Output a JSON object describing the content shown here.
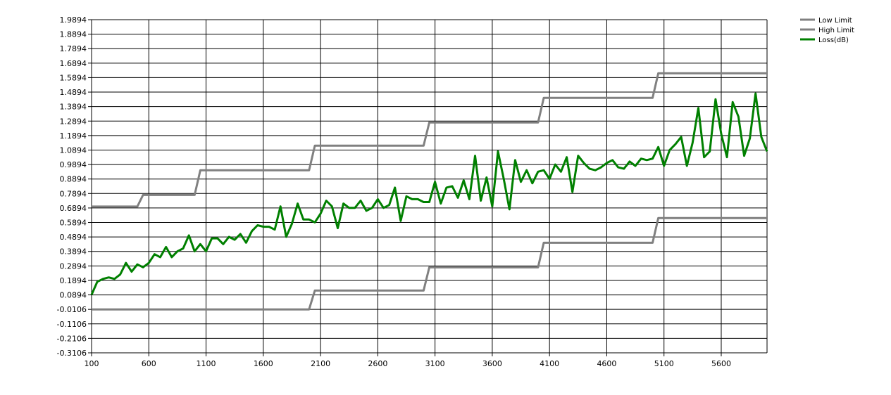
{
  "chart_data": {
    "type": "line",
    "title": "",
    "xlabel": "",
    "ylabel": "",
    "xlim": [
      100,
      6000
    ],
    "ylim": [
      -0.3106,
      1.9894
    ],
    "x_ticks": [
      "100",
      "600",
      "1100",
      "1600",
      "2100",
      "2600",
      "3100",
      "3600",
      "4100",
      "4600",
      "5100",
      "5600"
    ],
    "y_ticks": [
      "1.9894",
      "1.8894",
      "1.7894",
      "1.6894",
      "1.5894",
      "1.4894",
      "1.3894",
      "1.2894",
      "1.1894",
      "1.0894",
      "0.9894",
      "0.8894",
      "0.7894",
      "0.6894",
      "0.5894",
      "0.4894",
      "0.3894",
      "0.2894",
      "0.1894",
      "0.0894",
      "-0.0106",
      "-0.1106",
      "-0.2106",
      "-0.3106"
    ],
    "grid": true,
    "legend_position": "top-right",
    "series": [
      {
        "name": "Low Limit",
        "color": "#808080",
        "x": [
          100,
          2000,
          2050,
          3000,
          3050,
          4000,
          4050,
          5000,
          5050,
          6000
        ],
        "y": [
          -0.0106,
          -0.0106,
          0.1194,
          0.1194,
          0.2794,
          0.2794,
          0.4494,
          0.4494,
          0.6194,
          0.6194
        ]
      },
      {
        "name": "High Limit",
        "color": "#808080",
        "x": [
          100,
          500,
          550,
          1000,
          1050,
          2000,
          2050,
          3000,
          3050,
          4000,
          4050,
          5000,
          5050,
          6000
        ],
        "y": [
          0.6994,
          0.6994,
          0.7794,
          0.7794,
          0.9494,
          0.9494,
          1.1194,
          1.1194,
          1.2794,
          1.2794,
          1.4494,
          1.4494,
          1.6194,
          1.6194
        ]
      },
      {
        "name": "Loss(dB)",
        "color": "#008000",
        "x": [
          100,
          150,
          200,
          250,
          300,
          350,
          400,
          450,
          500,
          550,
          600,
          650,
          700,
          750,
          800,
          850,
          900,
          950,
          1000,
          1050,
          1100,
          1150,
          1200,
          1250,
          1300,
          1350,
          1400,
          1450,
          1500,
          1550,
          1600,
          1650,
          1700,
          1750,
          1800,
          1850,
          1900,
          1950,
          2000,
          2050,
          2100,
          2150,
          2200,
          2250,
          2300,
          2350,
          2400,
          2450,
          2500,
          2550,
          2600,
          2650,
          2700,
          2750,
          2800,
          2850,
          2900,
          2950,
          3000,
          3050,
          3100,
          3150,
          3200,
          3250,
          3300,
          3350,
          3400,
          3450,
          3500,
          3550,
          3600,
          3650,
          3700,
          3750,
          3800,
          3850,
          3900,
          3950,
          4000,
          4050,
          4100,
          4150,
          4200,
          4250,
          4300,
          4350,
          4400,
          4450,
          4500,
          4550,
          4600,
          4650,
          4700,
          4750,
          4800,
          4850,
          4900,
          4950,
          5000,
          5050,
          5100,
          5150,
          5200,
          5250,
          5300,
          5350,
          5400,
          5450,
          5500,
          5550,
          5600,
          5650,
          5700,
          5750,
          5800,
          5850,
          5900,
          5950,
          6000
        ],
        "y": [
          0.09,
          0.18,
          0.2,
          0.21,
          0.2,
          0.23,
          0.31,
          0.25,
          0.3,
          0.28,
          0.31,
          0.37,
          0.35,
          0.42,
          0.35,
          0.39,
          0.41,
          0.5,
          0.39,
          0.44,
          0.39,
          0.48,
          0.48,
          0.44,
          0.49,
          0.47,
          0.51,
          0.45,
          0.53,
          0.57,
          0.56,
          0.56,
          0.54,
          0.7,
          0.49,
          0.58,
          0.72,
          0.61,
          0.61,
          0.59,
          0.65,
          0.74,
          0.7,
          0.55,
          0.72,
          0.69,
          0.69,
          0.74,
          0.67,
          0.69,
          0.75,
          0.69,
          0.71,
          0.83,
          0.6,
          0.77,
          0.75,
          0.75,
          0.73,
          0.73,
          0.87,
          0.72,
          0.83,
          0.84,
          0.76,
          0.88,
          0.75,
          1.05,
          0.74,
          0.9,
          0.7,
          1.08,
          0.89,
          0.68,
          1.02,
          0.87,
          0.95,
          0.86,
          0.94,
          0.95,
          0.89,
          0.99,
          0.94,
          1.04,
          0.8,
          1.05,
          1.0,
          0.96,
          0.95,
          0.97,
          1.0,
          1.02,
          0.97,
          0.96,
          1.01,
          0.98,
          1.03,
          1.02,
          1.03,
          1.11,
          0.98,
          1.09,
          1.13,
          1.18,
          0.98,
          1.14,
          1.38,
          1.04,
          1.08,
          1.44,
          1.2,
          1.04,
          1.42,
          1.32,
          1.05,
          1.17,
          1.48,
          1.18,
          1.08
        ]
      }
    ]
  }
}
